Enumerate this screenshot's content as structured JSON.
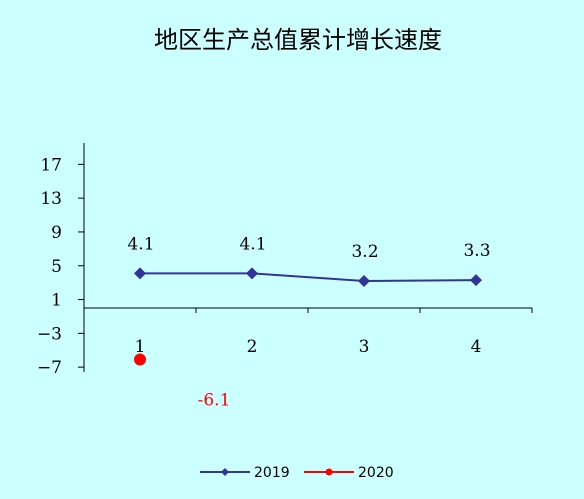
{
  "chart_data": {
    "type": "line",
    "title": "地区生产总值累计增长速度",
    "categories": [
      "1",
      "2",
      "3",
      "4"
    ],
    "y_ticks": [
      17,
      13,
      9,
      5,
      1,
      -3,
      -7
    ],
    "ylim": [
      -7,
      17
    ],
    "grid": false,
    "legend_position": "bottom",
    "series": [
      {
        "name": "2019",
        "values": [
          4.1,
          4.1,
          3.2,
          3.3
        ],
        "labels": [
          "4.1",
          "4.1",
          "3.2",
          "3.3"
        ],
        "color": "#333399",
        "marker": "diamond"
      },
      {
        "name": "2020",
        "values": [
          -6.1,
          null,
          null,
          null
        ],
        "labels": [
          "-6.1",
          "",
          "",
          ""
        ],
        "color": "#ff0000",
        "marker": "circle"
      }
    ]
  }
}
